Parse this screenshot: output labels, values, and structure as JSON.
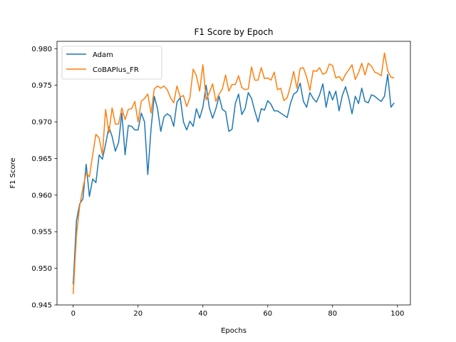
{
  "chart_data": {
    "type": "line",
    "title": "F1 Score by Epoch",
    "xlabel": "Epochs",
    "ylabel": "F1 Score",
    "xlim": [
      -5,
      104
    ],
    "ylim": [
      0.945,
      0.981
    ],
    "xticks": [
      0,
      20,
      40,
      60,
      80,
      100
    ],
    "yticks": [
      0.945,
      0.95,
      0.955,
      0.96,
      0.965,
      0.97,
      0.975,
      0.98
    ],
    "ytick_labels": [
      "0.945",
      "0.950",
      "0.955",
      "0.960",
      "0.965",
      "0.970",
      "0.975",
      "0.980"
    ],
    "xtick_labels": [
      "0",
      "20",
      "40",
      "60",
      "80",
      "100"
    ],
    "grid": false,
    "legend_position": "top-left",
    "series": [
      {
        "name": "Adam",
        "color": "#1f77b4",
        "x": [
          0,
          1,
          2,
          3,
          4,
          5,
          6,
          7,
          8,
          9,
          10,
          11,
          12,
          13,
          14,
          15,
          16,
          17,
          18,
          19,
          20,
          21,
          22,
          23,
          24,
          25,
          26,
          27,
          28,
          29,
          30,
          31,
          32,
          33,
          34,
          35,
          36,
          37,
          38,
          39,
          40,
          41,
          42,
          43,
          44,
          45,
          46,
          47,
          48,
          49,
          50,
          51,
          52,
          53,
          54,
          55,
          56,
          57,
          58,
          59,
          60,
          61,
          62,
          63,
          64,
          65,
          66,
          67,
          68,
          69,
          70,
          71,
          72,
          73,
          74,
          75,
          76,
          77,
          78,
          79,
          80,
          81,
          82,
          83,
          84,
          85,
          86,
          87,
          88,
          89,
          90,
          91,
          92,
          93,
          94,
          95,
          96,
          97,
          98,
          99
        ],
        "values": [
          0.9478,
          0.9565,
          0.9588,
          0.9595,
          0.9642,
          0.9598,
          0.9622,
          0.9617,
          0.9655,
          0.9649,
          0.967,
          0.9693,
          0.968,
          0.966,
          0.9672,
          0.9712,
          0.9655,
          0.9695,
          0.9694,
          0.9689,
          0.9689,
          0.9712,
          0.97,
          0.9628,
          0.969,
          0.9735,
          0.9718,
          0.9687,
          0.9707,
          0.9711,
          0.9708,
          0.9694,
          0.9727,
          0.9733,
          0.97,
          0.9689,
          0.9701,
          0.9694,
          0.9718,
          0.9705,
          0.972,
          0.975,
          0.9719,
          0.9705,
          0.9718,
          0.9735,
          0.9717,
          0.9714,
          0.9687,
          0.969,
          0.9725,
          0.9738,
          0.971,
          0.9718,
          0.974,
          0.9732,
          0.9715,
          0.97,
          0.9718,
          0.9716,
          0.9729,
          0.9724,
          0.9715,
          0.9715,
          0.9712,
          0.9709,
          0.9706,
          0.9725,
          0.9738,
          0.9741,
          0.9753,
          0.9728,
          0.972,
          0.974,
          0.9732,
          0.9727,
          0.9737,
          0.9752,
          0.972,
          0.9742,
          0.973,
          0.9742,
          0.9715,
          0.9736,
          0.9748,
          0.9732,
          0.9711,
          0.9735,
          0.9725,
          0.9746,
          0.9728,
          0.9726,
          0.9737,
          0.9735,
          0.9731,
          0.9728,
          0.9735,
          0.9765,
          0.972,
          0.9726
        ]
      },
      {
        "name": "CoBAPlus_FR",
        "color": "#ff7f0e",
        "x": [
          0,
          1,
          2,
          3,
          4,
          5,
          6,
          7,
          8,
          9,
          10,
          11,
          12,
          13,
          14,
          15,
          16,
          17,
          18,
          19,
          20,
          21,
          22,
          23,
          24,
          25,
          26,
          27,
          28,
          29,
          30,
          31,
          32,
          33,
          34,
          35,
          36,
          37,
          38,
          39,
          40,
          41,
          42,
          43,
          44,
          45,
          46,
          47,
          48,
          49,
          50,
          51,
          52,
          53,
          54,
          55,
          56,
          57,
          58,
          59,
          60,
          61,
          62,
          63,
          64,
          65,
          66,
          67,
          68,
          69,
          70,
          71,
          72,
          73,
          74,
          75,
          76,
          77,
          78,
          79,
          80,
          81,
          82,
          83,
          84,
          85,
          86,
          87,
          88,
          89,
          90,
          91,
          92,
          93,
          94,
          95,
          96,
          97,
          98,
          99
        ],
        "values": [
          0.9465,
          0.9545,
          0.9585,
          0.961,
          0.963,
          0.9625,
          0.9655,
          0.9683,
          0.9678,
          0.9655,
          0.9717,
          0.9685,
          0.9719,
          0.9697,
          0.9697,
          0.9719,
          0.9703,
          0.9717,
          0.9718,
          0.9728,
          0.97,
          0.9728,
          0.9732,
          0.9738,
          0.9712,
          0.9745,
          0.9749,
          0.9746,
          0.9749,
          0.9744,
          0.9733,
          0.9726,
          0.9749,
          0.9734,
          0.9736,
          0.9721,
          0.9733,
          0.9772,
          0.9763,
          0.9742,
          0.9778,
          0.973,
          0.974,
          0.9752,
          0.9728,
          0.9738,
          0.9745,
          0.9764,
          0.9742,
          0.9751,
          0.9751,
          0.9763,
          0.9747,
          0.9744,
          0.9745,
          0.9775,
          0.9757,
          0.9757,
          0.9774,
          0.9759,
          0.976,
          0.9757,
          0.9768,
          0.9744,
          0.9746,
          0.9729,
          0.9733,
          0.9749,
          0.9769,
          0.9746,
          0.9773,
          0.9774,
          0.9761,
          0.9743,
          0.977,
          0.9769,
          0.9774,
          0.9765,
          0.9767,
          0.9779,
          0.9777,
          0.976,
          0.9762,
          0.9756,
          0.9765,
          0.9771,
          0.9778,
          0.9758,
          0.9767,
          0.978,
          0.9764,
          0.978,
          0.9776,
          0.9768,
          0.9766,
          0.9763,
          0.9794,
          0.977,
          0.9761,
          0.976
        ]
      }
    ]
  }
}
